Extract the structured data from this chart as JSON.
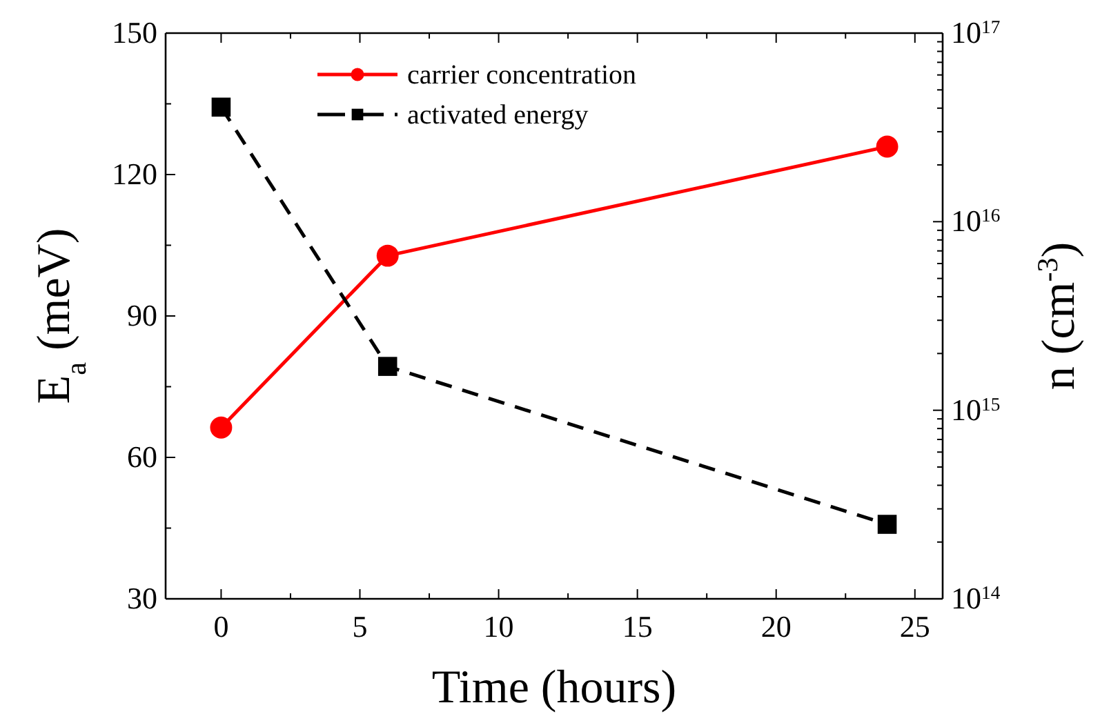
{
  "chart_data": {
    "type": "line",
    "xlabel": "Time (hours)",
    "ylabel": "E$_{a}$ (meV)",
    "y2label": "n (cm$^{-3}$)",
    "xlim": [
      -2,
      26
    ],
    "xticks": [
      0,
      {
        "value": 2.5,
        "label": null
      },
      5,
      {
        "value": 7.5,
        "label": null
      },
      10,
      {
        "value": 12.5,
        "label": null
      },
      15,
      {
        "value": 17.5,
        "label": null
      },
      20,
      {
        "value": 22.5,
        "label": null
      },
      25
    ],
    "ylim": [
      30,
      150
    ],
    "yticks": [
      30,
      {
        "value": 45,
        "label": null
      },
      60,
      {
        "value": 75,
        "label": null
      },
      90,
      {
        "value": 105,
        "label": null
      },
      120,
      {
        "value": 135,
        "label": null
      },
      150
    ],
    "y2lim": [
      100000000000000.0,
      1e+17
    ],
    "y2ticks": [
      {
        "value": 100000000000000.0,
        "label": "10$^{14}$"
      },
      {
        "value": 200000000000000.0,
        "label": null
      },
      {
        "value": 300000000000000.0,
        "label": null
      },
      {
        "value": 400000000000000.0,
        "label": null
      },
      {
        "value": 500000000000000.0,
        "label": null
      },
      {
        "value": 600000000000000.0,
        "label": null
      },
      {
        "value": 700000000000000.0,
        "label": null
      },
      {
        "value": 800000000000000.0,
        "label": null
      },
      {
        "value": 900000000000000.0,
        "label": null
      },
      {
        "value": 1000000000000000.0,
        "label": "10$^{15}$"
      },
      {
        "value": 2000000000000000.0,
        "label": null
      },
      {
        "value": 3000000000000000.0,
        "label": null
      },
      {
        "value": 4000000000000000.0,
        "label": null
      },
      {
        "value": 5000000000000000.0,
        "label": null
      },
      {
        "value": 6000000000000000.0,
        "label": null
      },
      {
        "value": 7000000000000000.0,
        "label": null
      },
      {
        "value": 8000000000000000.0,
        "label": null
      },
      {
        "value": 9000000000000000.0,
        "label": null
      },
      {
        "value": 1e+16,
        "label": "10$^{16}$"
      },
      {
        "value": 2e+16,
        "label": null
      },
      {
        "value": 3e+16,
        "label": null
      },
      {
        "value": 4e+16,
        "label": null
      },
      {
        "value": 5e+16,
        "label": null
      },
      {
        "value": 6e+16,
        "label": null
      },
      {
        "value": 7e+16,
        "label": null
      },
      {
        "value": 8e+16,
        "label": null
      },
      {
        "value": 9e+16,
        "label": null
      },
      {
        "value": 1e+17,
        "label": "10$^{17}$"
      }
    ],
    "log": "y2",
    "legend": "top",
    "x": [
      0,
      6,
      24
    ],
    "series": [
      {
        "name": "carrier concentration",
        "color": "#ff0000",
        "axis": "y2",
        "marker": "circle",
        "line_style": "solid",
        "values": [
          810000000000000.0,
          6600000000000000.0,
          2.5e+16
        ]
      },
      {
        "name": "activated energy",
        "color": "#000000",
        "axis": "y",
        "marker": "square",
        "line_style": "dashed",
        "values": [
          134.3,
          79.3,
          45.8
        ]
      }
    ]
  }
}
